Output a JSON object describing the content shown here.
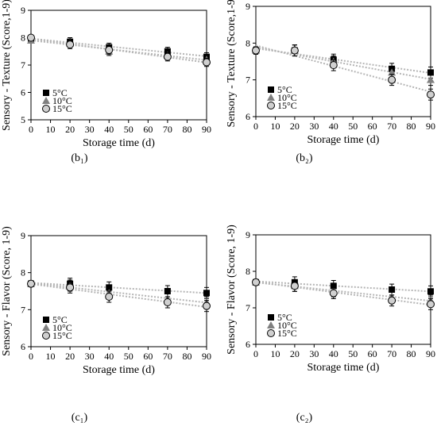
{
  "chart_data": [
    {
      "type": "scatter",
      "panel_label": "(b₁)",
      "ylabel": "Sensory - Texture (Score,1-9)",
      "xlabel": "Storage time (d)",
      "xlim": [
        0,
        90
      ],
      "xticks": [
        0,
        10,
        20,
        30,
        40,
        50,
        60,
        70,
        80,
        90
      ],
      "ylim": [
        5,
        9
      ],
      "yticks": [
        5,
        6,
        7,
        8,
        9
      ],
      "legend_position": "left-bottom",
      "trendlines": "dotted linear",
      "x": [
        0,
        20,
        40,
        70,
        90
      ],
      "series": [
        {
          "name": "5°C",
          "marker": "square",
          "color": "#000000",
          "values": [
            7.95,
            7.85,
            7.65,
            7.5,
            7.3
          ],
          "error": [
            0.1,
            0.15,
            0.15,
            0.15,
            0.15
          ]
        },
        {
          "name": "10°C",
          "marker": "triangle",
          "color": "#808080",
          "values": [
            7.9,
            7.8,
            7.5,
            7.35,
            7.2
          ],
          "error": [
            0.1,
            0.15,
            0.15,
            0.15,
            0.15
          ]
        },
        {
          "name": "15°C",
          "marker": "circle",
          "color": "#d0d0d0",
          "values": [
            8.0,
            7.75,
            7.55,
            7.3,
            7.1
          ],
          "error": [
            0.1,
            0.15,
            0.15,
            0.15,
            0.15
          ]
        }
      ]
    },
    {
      "type": "scatter",
      "panel_label": "(b₂)",
      "ylabel": "Sensory - Texture (Score,1-9)",
      "xlabel": "Storage time (d)",
      "xlim": [
        0,
        90
      ],
      "xticks": [
        0,
        10,
        20,
        30,
        40,
        50,
        60,
        70,
        80,
        90
      ],
      "ylim": [
        6,
        9
      ],
      "yticks": [
        6,
        7,
        8,
        9
      ],
      "legend_position": "left-bottom",
      "trendlines": "dotted linear",
      "x": [
        0,
        20,
        40,
        70,
        90
      ],
      "series": [
        {
          "name": "5°C",
          "marker": "square",
          "color": "#000000",
          "values": [
            7.8,
            7.8,
            7.55,
            7.3,
            7.2
          ],
          "error": [
            0.1,
            0.15,
            0.15,
            0.15,
            0.15
          ]
        },
        {
          "name": "10°C",
          "marker": "triangle",
          "color": "#808080",
          "values": [
            7.8,
            7.8,
            7.5,
            7.2,
            7.0
          ],
          "error": [
            0.1,
            0.15,
            0.15,
            0.15,
            0.15
          ]
        },
        {
          "name": "15°C",
          "marker": "circle",
          "color": "#d0d0d0",
          "values": [
            7.8,
            7.8,
            7.4,
            7.0,
            6.6
          ],
          "error": [
            0.1,
            0.15,
            0.15,
            0.15,
            0.15
          ]
        }
      ]
    },
    {
      "type": "scatter",
      "panel_label": "(c₁)",
      "ylabel": "Sensory - Flavor (Score, 1-9)",
      "xlabel": "Storage time (d)",
      "xlim": [
        0,
        90
      ],
      "xticks": [
        0,
        10,
        20,
        30,
        40,
        50,
        60,
        70,
        80,
        90
      ],
      "ylim": [
        6,
        9
      ],
      "yticks": [
        6,
        7,
        8,
        9
      ],
      "legend_position": "left-bottom",
      "trendlines": "dotted linear",
      "x": [
        0,
        20,
        40,
        70,
        90
      ],
      "series": [
        {
          "name": "5°C",
          "marker": "square",
          "color": "#000000",
          "values": [
            7.7,
            7.7,
            7.6,
            7.5,
            7.45
          ],
          "error": [
            0.08,
            0.15,
            0.15,
            0.15,
            0.15
          ]
        },
        {
          "name": "10°C",
          "marker": "triangle",
          "color": "#808080",
          "values": [
            7.7,
            7.65,
            7.45,
            7.3,
            7.2
          ],
          "error": [
            0.08,
            0.15,
            0.15,
            0.15,
            0.15
          ]
        },
        {
          "name": "15°C",
          "marker": "circle",
          "color": "#d0d0d0",
          "values": [
            7.7,
            7.6,
            7.35,
            7.2,
            7.1
          ],
          "error": [
            0.08,
            0.15,
            0.15,
            0.15,
            0.15
          ]
        }
      ]
    },
    {
      "type": "scatter",
      "panel_label": "(c₂)",
      "ylabel": "Sensory - Flavor (Score, 1-9)",
      "xlabel": "Storage time (d)",
      "xlim": [
        0,
        90
      ],
      "xticks": [
        0,
        10,
        20,
        30,
        40,
        50,
        60,
        70,
        80,
        90
      ],
      "ylim": [
        6,
        9
      ],
      "yticks": [
        6,
        7,
        8,
        9
      ],
      "legend_position": "left-bottom",
      "trendlines": "dotted linear",
      "x": [
        0,
        20,
        40,
        70,
        90
      ],
      "series": [
        {
          "name": "5°C",
          "marker": "square",
          "color": "#000000",
          "values": [
            7.7,
            7.7,
            7.6,
            7.5,
            7.45
          ],
          "error": [
            0.08,
            0.15,
            0.15,
            0.15,
            0.15
          ]
        },
        {
          "name": "10°C",
          "marker": "triangle",
          "color": "#808080",
          "values": [
            7.7,
            7.6,
            7.45,
            7.3,
            7.2
          ],
          "error": [
            0.08,
            0.15,
            0.15,
            0.15,
            0.15
          ]
        },
        {
          "name": "15°C",
          "marker": "circle",
          "color": "#d0d0d0",
          "values": [
            7.7,
            7.6,
            7.4,
            7.2,
            7.1
          ],
          "error": [
            0.08,
            0.15,
            0.15,
            0.15,
            0.15
          ]
        }
      ]
    }
  ]
}
